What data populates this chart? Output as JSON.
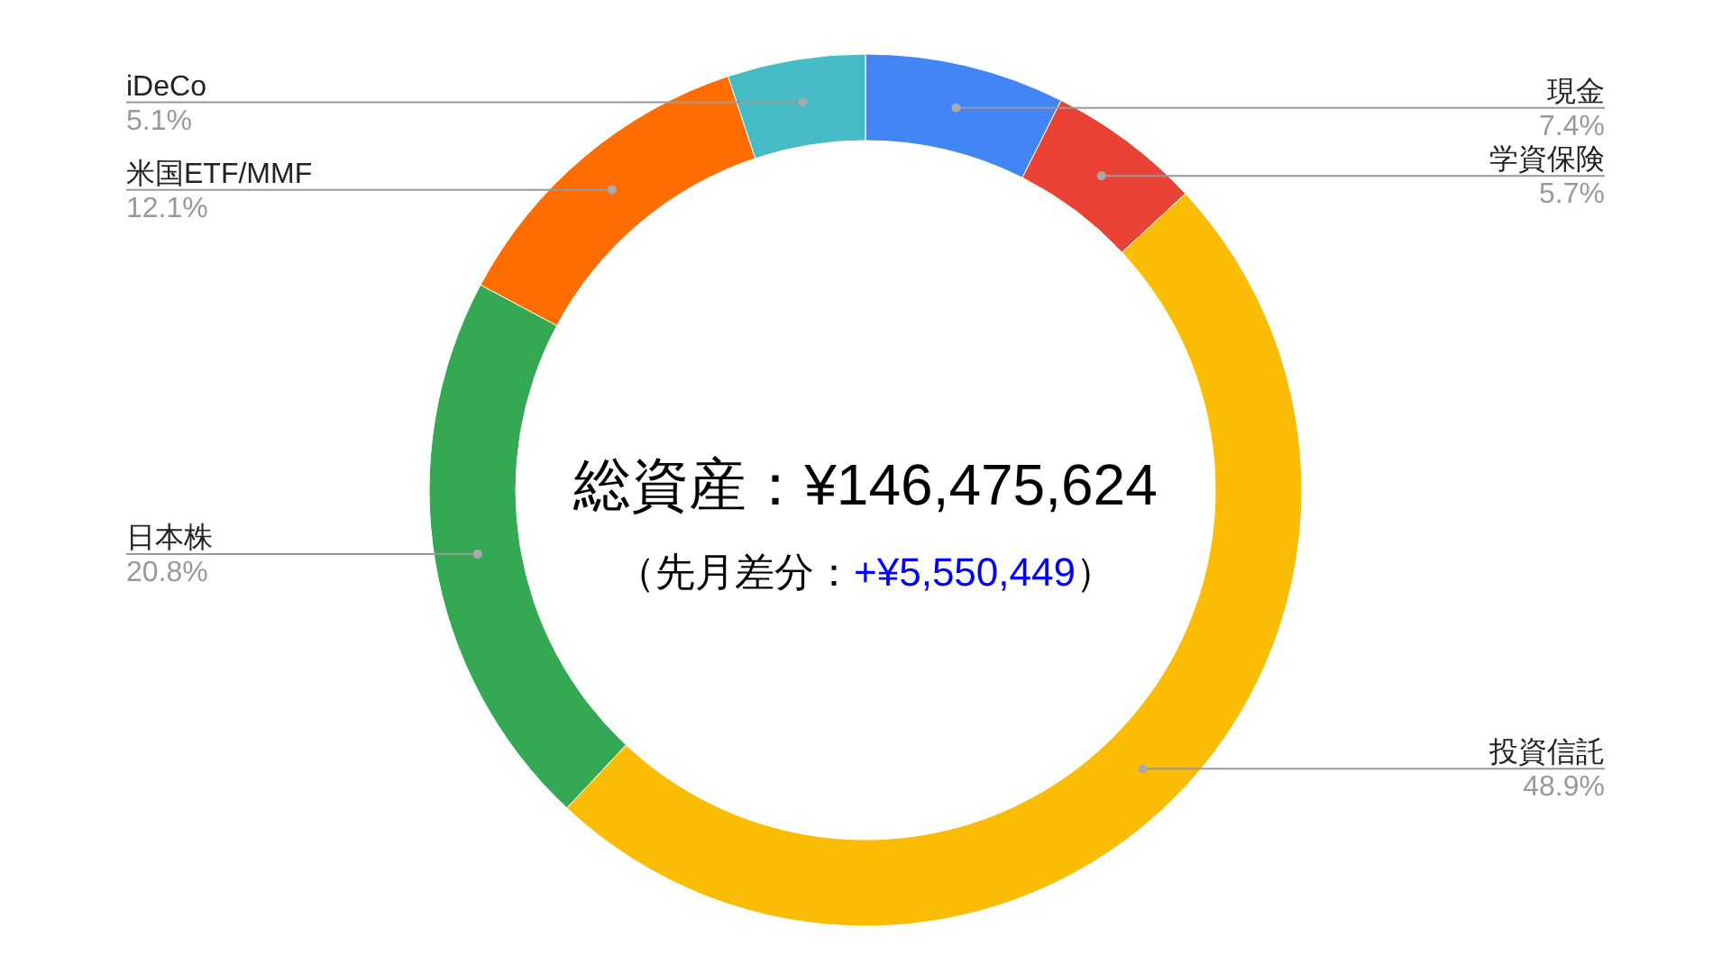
{
  "chart_data": {
    "type": "donut",
    "categories": [
      "現金",
      "学資保険",
      "投資信託",
      "日本株",
      "米国ETF/MMF",
      "iDeCo"
    ],
    "values": [
      7.4,
      5.7,
      48.9,
      20.8,
      12.1,
      5.1
    ],
    "value_labels": [
      "7.4%",
      "5.7%",
      "48.9%",
      "20.8%",
      "12.1%",
      "5.1%"
    ],
    "colors": [
      "#4285f4",
      "#ea4335",
      "#fbbc04",
      "#34a853",
      "#ff6d01",
      "#46bdc6"
    ],
    "annotations": [
      "総資産：¥146,475,624",
      "（先月差分：",
      "+¥5,550,449",
      "）"
    ]
  }
}
